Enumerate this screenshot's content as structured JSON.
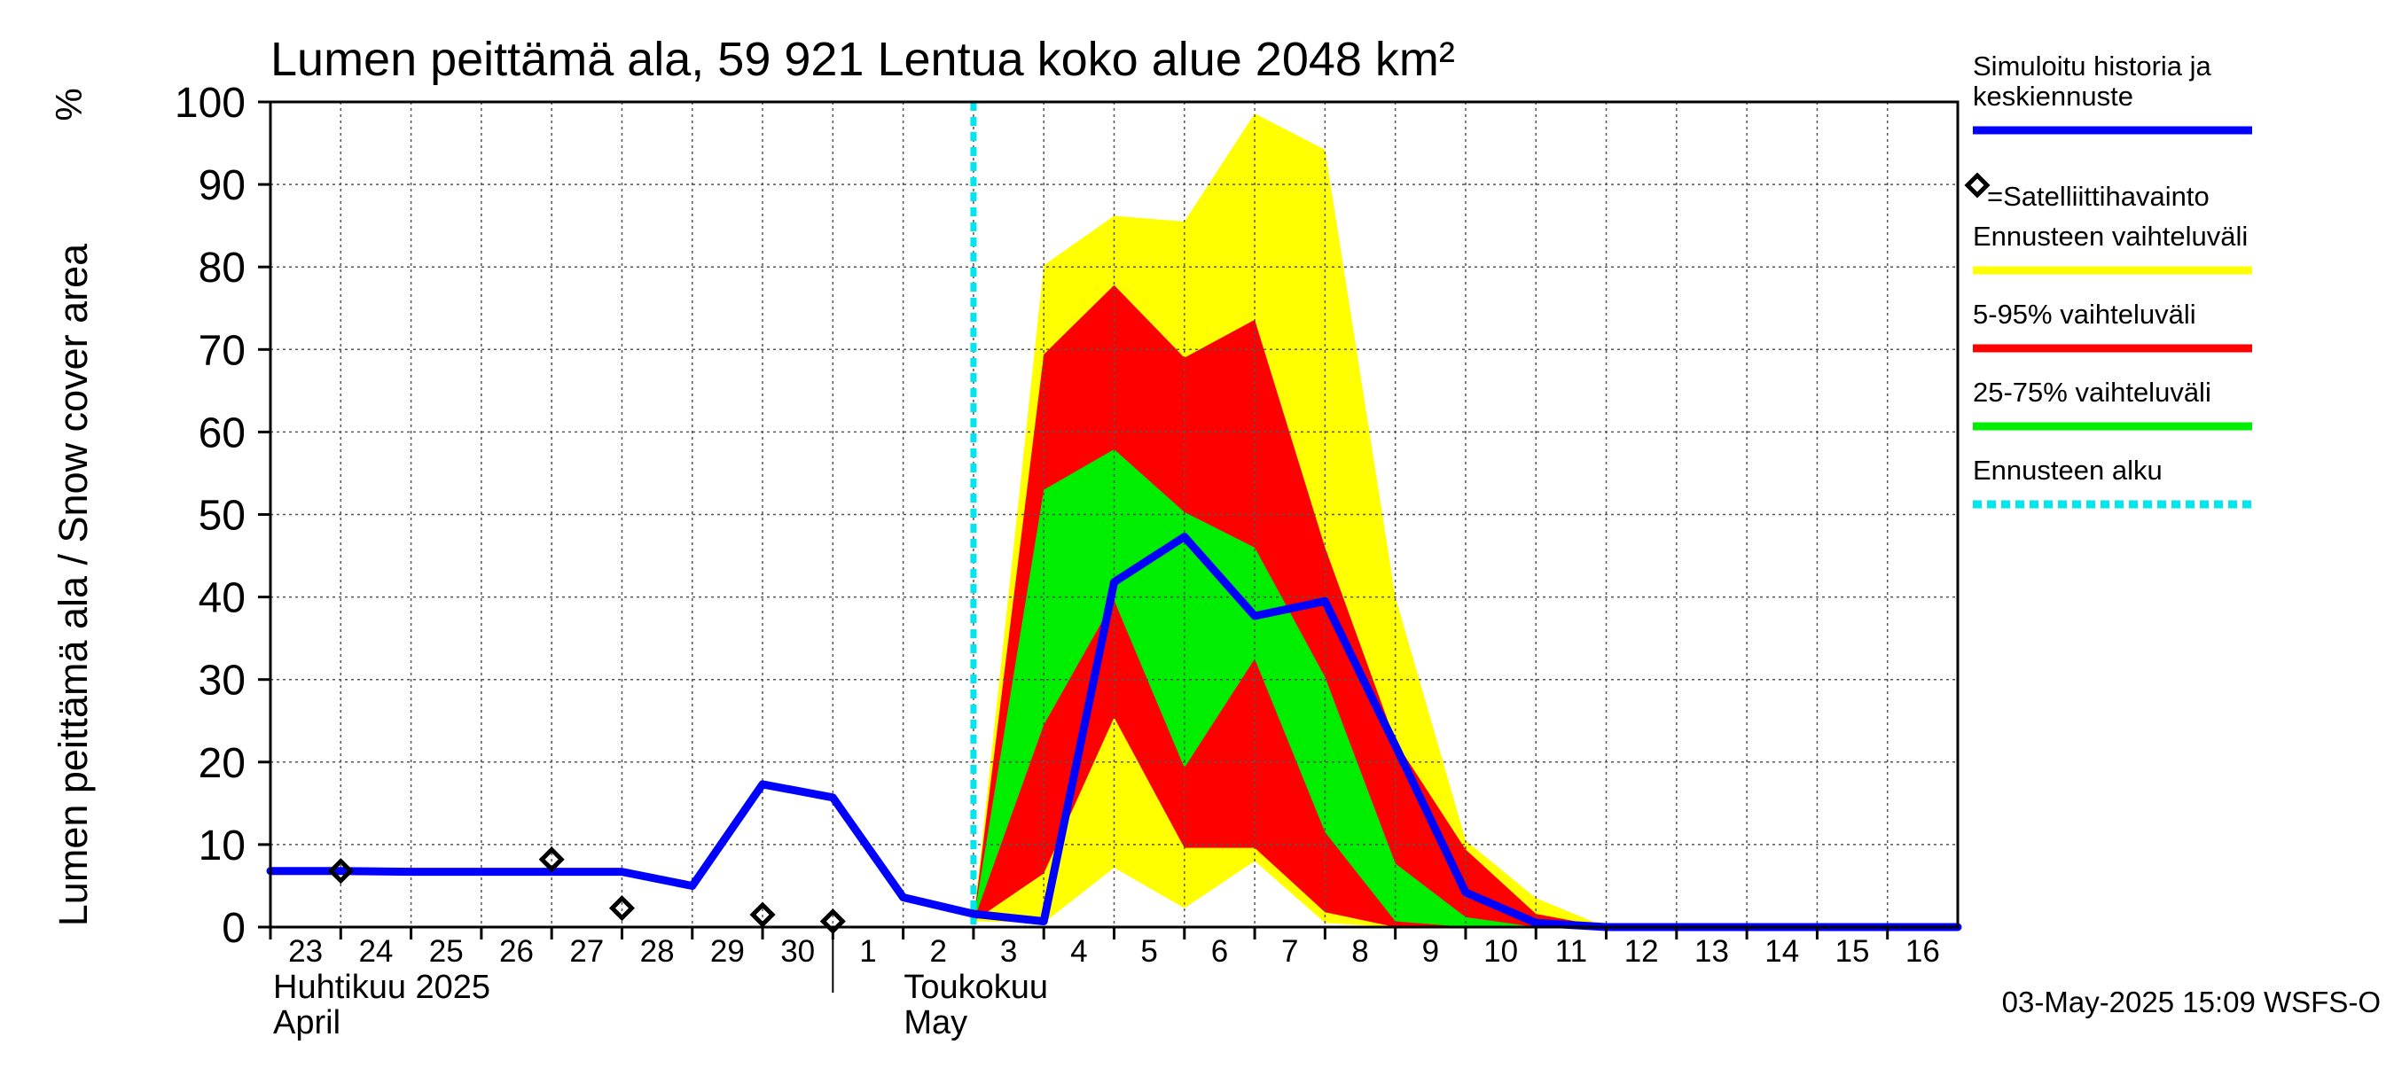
{
  "chart_data": {
    "type": "area",
    "title": "Lumen peittämä ala, 59 921 Lentua koko alue 2048 km²",
    "ylabel": "Lumen peittämä ala / Snow cover area",
    "yunit": "%",
    "ylim": [
      0,
      100
    ],
    "yticks": [
      0,
      10,
      20,
      30,
      40,
      50,
      60,
      70,
      80,
      90,
      100
    ],
    "xlim": [
      "2025-04-23",
      "2025-05-17"
    ],
    "x_tick_labels": [
      {
        "date": "2025-04-23",
        "label": "23"
      },
      {
        "date": "2025-04-24",
        "label": "24"
      },
      {
        "date": "2025-04-25",
        "label": "25"
      },
      {
        "date": "2025-04-26",
        "label": "26"
      },
      {
        "date": "2025-04-27",
        "label": "27"
      },
      {
        "date": "2025-04-28",
        "label": "28"
      },
      {
        "date": "2025-04-29",
        "label": "29"
      },
      {
        "date": "2025-04-30",
        "label": "30"
      },
      {
        "date": "2025-05-01",
        "label": "1"
      },
      {
        "date": "2025-05-02",
        "label": "2"
      },
      {
        "date": "2025-05-03",
        "label": "3"
      },
      {
        "date": "2025-05-04",
        "label": "4"
      },
      {
        "date": "2025-05-05",
        "label": "5"
      },
      {
        "date": "2025-05-06",
        "label": "6"
      },
      {
        "date": "2025-05-07",
        "label": "7"
      },
      {
        "date": "2025-05-08",
        "label": "8"
      },
      {
        "date": "2025-05-09",
        "label": "9"
      },
      {
        "date": "2025-05-10",
        "label": "10"
      },
      {
        "date": "2025-05-11",
        "label": "11"
      },
      {
        "date": "2025-05-12",
        "label": "12"
      },
      {
        "date": "2025-05-13",
        "label": "13"
      },
      {
        "date": "2025-05-14",
        "label": "14"
      },
      {
        "date": "2025-05-15",
        "label": "15"
      },
      {
        "date": "2025-05-16",
        "label": "16"
      }
    ],
    "month_labels": [
      {
        "date": "2025-04-23",
        "line1": "Huhtikuu  2025",
        "line2": "April"
      },
      {
        "date": "2025-05-01",
        "line1": "Toukokuu",
        "line2": "May"
      }
    ],
    "month_boundary_date": "2025-05-01",
    "grid": true,
    "forecast_start": "2025-05-03",
    "series": [
      {
        "name": "Simuloitu historia ja keskiennuste",
        "color": "#0000ff",
        "dates": [
          "2025-04-23",
          "2025-04-24",
          "2025-04-25",
          "2025-04-26",
          "2025-04-27",
          "2025-04-28",
          "2025-04-29",
          "2025-04-30",
          "2025-05-01",
          "2025-05-02",
          "2025-05-03",
          "2025-05-04",
          "2025-05-05",
          "2025-05-06",
          "2025-05-07",
          "2025-05-08",
          "2025-05-09",
          "2025-05-10",
          "2025-05-11",
          "2025-05-12",
          "2025-05-13",
          "2025-05-14",
          "2025-05-15",
          "2025-05-16",
          "2025-05-17"
        ],
        "values": [
          6.8,
          6.8,
          6.7,
          6.7,
          6.7,
          6.7,
          5,
          17.3,
          15.7,
          3.6,
          1.6,
          0.7,
          41.8,
          47.3,
          37.7,
          39.5,
          22,
          4.2,
          0.5,
          0,
          0,
          0,
          0,
          0,
          0
        ]
      },
      {
        "name": "=Satelliittihavainto",
        "type": "marker",
        "dates": [
          "2025-04-24",
          "2025-04-27",
          "2025-04-28",
          "2025-04-30",
          "2025-05-01"
        ],
        "values": [
          6.8,
          8.2,
          2.3,
          1.5,
          0.7
        ]
      }
    ],
    "bands": [
      {
        "name": "Ennusteen vaihteluväli",
        "color": "#ffff00",
        "dates": [
          "2025-05-03",
          "2025-05-04",
          "2025-05-05",
          "2025-05-06",
          "2025-05-07",
          "2025-05-08",
          "2025-05-09",
          "2025-05-10",
          "2025-05-11",
          "2025-05-12",
          "2025-05-13",
          "2025-05-17"
        ],
        "upper": [
          0.7,
          80.2,
          86.2,
          85.5,
          98.6,
          94.2,
          40,
          10.5,
          3.5,
          0,
          0,
          0
        ],
        "lower": [
          0.7,
          0.5,
          7.2,
          2.3,
          8,
          0.5,
          0,
          0,
          0,
          0,
          0,
          0
        ]
      },
      {
        "name": "5-95% vaihteluväli",
        "color": "#ff0000",
        "dates": [
          "2025-05-03",
          "2025-05-04",
          "2025-05-05",
          "2025-05-06",
          "2025-05-07",
          "2025-05-08",
          "2025-05-09",
          "2025-05-10",
          "2025-05-11",
          "2025-05-12",
          "2025-05-13",
          "2025-05-17"
        ],
        "upper": [
          0.7,
          69.4,
          77.8,
          69,
          73.6,
          46,
          22.5,
          9.4,
          1.6,
          0,
          0,
          0
        ],
        "lower": [
          0.7,
          6.5,
          25.4,
          9.6,
          9.6,
          1.8,
          0,
          0,
          0,
          0,
          0,
          0
        ]
      },
      {
        "name": "25-75% vaihteluväli",
        "color": "#00ee00",
        "dates": [
          "2025-05-03",
          "2025-05-04",
          "2025-05-05",
          "2025-05-06",
          "2025-05-07",
          "2025-05-08",
          "2025-05-09",
          "2025-05-10",
          "2025-05-11",
          "2025-05-12",
          "2025-05-13",
          "2025-05-17"
        ],
        "upper": [
          0.7,
          53,
          57.9,
          50.3,
          46,
          30.3,
          7.7,
          1.2,
          0,
          0,
          0,
          0
        ],
        "lower": [
          0.7,
          24.5,
          39.6,
          19.3,
          32.5,
          11.5,
          0.7,
          0,
          0,
          0,
          0,
          0
        ]
      }
    ],
    "legend": [
      {
        "label": "Simuloitu historia ja keskiennuste",
        "style": "line",
        "color": "#0000ff"
      },
      {
        "label": "=Satelliittihavainto",
        "style": "marker",
        "color": "#000000"
      },
      {
        "label": "Ennusteen vaihteluväli",
        "style": "line",
        "color": "#ffff00"
      },
      {
        "label": "5-95% vaihteluväli",
        "style": "line",
        "color": "#ff0000"
      },
      {
        "label": "25-75% vaihteluväli",
        "style": "line",
        "color": "#00ee00"
      },
      {
        "label": "Ennusteen alku",
        "style": "dashed",
        "color": "#00e5ee"
      }
    ],
    "legend_position": "right",
    "footer": "03-May-2025 15:09 WSFS-O"
  }
}
